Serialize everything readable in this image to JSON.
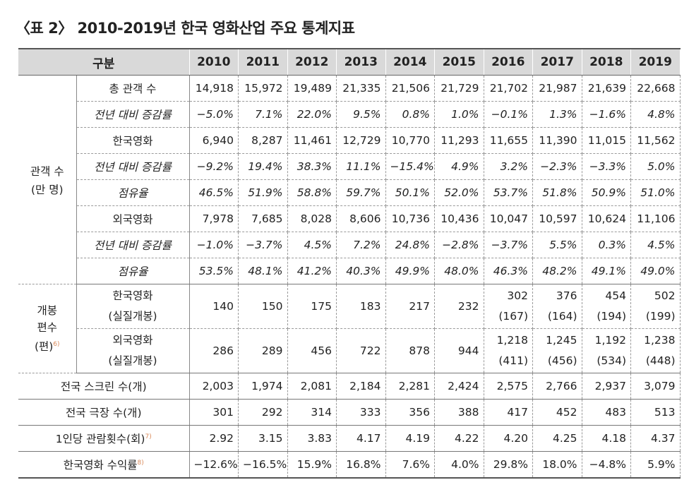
{
  "title": "〈표 2〉 2010-2019년 한국 영화산업 주요 통계지표",
  "header": {
    "category": "구분",
    "years": [
      "2010",
      "2011",
      "2012",
      "2013",
      "2014",
      "2015",
      "2016",
      "2017",
      "2018",
      "2019"
    ]
  },
  "audience": {
    "group_label_1": "관객 수",
    "group_label_2": "(만 명)",
    "rows": [
      {
        "label": "총 관객 수",
        "italic": false,
        "values": [
          "14,918",
          "15,972",
          "19,489",
          "21,335",
          "21,506",
          "21,729",
          "21,702",
          "21,987",
          "21,639",
          "22,668"
        ]
      },
      {
        "label": "전년 대비 증감률",
        "italic": true,
        "values": [
          "−5.0%",
          "7.1%",
          "22.0%",
          "9.5%",
          "0.8%",
          "1.0%",
          "−0.1%",
          "1.3%",
          "−1.6%",
          "4.8%"
        ]
      },
      {
        "label": "한국영화",
        "italic": false,
        "values": [
          "6,940",
          "8,287",
          "11,461",
          "12,729",
          "10,770",
          "11,293",
          "11,655",
          "11,390",
          "11,015",
          "11,562"
        ]
      },
      {
        "label": "전년 대비 증감률",
        "italic": true,
        "values": [
          "−9.2%",
          "19.4%",
          "38.3%",
          "11.1%",
          "−15.4%",
          "4.9%",
          "3.2%",
          "−2.3%",
          "−3.3%",
          "5.0%"
        ]
      },
      {
        "label": "점유율",
        "italic": true,
        "values": [
          "46.5%",
          "51.9%",
          "58.8%",
          "59.7%",
          "50.1%",
          "52.0%",
          "53.7%",
          "51.8%",
          "50.9%",
          "51.0%"
        ]
      },
      {
        "label": "외국영화",
        "italic": false,
        "values": [
          "7,978",
          "7,685",
          "8,028",
          "8,606",
          "10,736",
          "10,436",
          "10,047",
          "10,597",
          "10,624",
          "11,106"
        ]
      },
      {
        "label": "전년 대비 증감률",
        "italic": true,
        "values": [
          "−1.0%",
          "−3.7%",
          "4.5%",
          "7.2%",
          "24.8%",
          "−2.8%",
          "−3.7%",
          "5.5%",
          "0.3%",
          "4.5%"
        ]
      },
      {
        "label": "점유율",
        "italic": true,
        "values": [
          "53.5%",
          "48.1%",
          "41.2%",
          "40.3%",
          "49.9%",
          "48.0%",
          "46.3%",
          "48.2%",
          "49.1%",
          "49.0%"
        ]
      }
    ]
  },
  "releases": {
    "group_label_1": "개봉",
    "group_label_2": "편수",
    "group_label_3": "(편)",
    "footnote": "6)",
    "rows": [
      {
        "label_1": "한국영화",
        "label_2": "(실질개봉)",
        "values": [
          [
            "140",
            ""
          ],
          [
            "150",
            ""
          ],
          [
            "175",
            ""
          ],
          [
            "183",
            ""
          ],
          [
            "217",
            ""
          ],
          [
            "232",
            ""
          ],
          [
            "302",
            "(167)"
          ],
          [
            "376",
            "(164)"
          ],
          [
            "454",
            "(194)"
          ],
          [
            "502",
            "(199)"
          ]
        ]
      },
      {
        "label_1": "외국영화",
        "label_2": "(실질개봉)",
        "values": [
          [
            "286",
            ""
          ],
          [
            "289",
            ""
          ],
          [
            "456",
            ""
          ],
          [
            "722",
            ""
          ],
          [
            "878",
            ""
          ],
          [
            "944",
            ""
          ],
          [
            "1,218",
            "(411)"
          ],
          [
            "1,245",
            "(456)"
          ],
          [
            "1,192",
            "(534)"
          ],
          [
            "1,238",
            "(448)"
          ]
        ]
      }
    ]
  },
  "bottom_rows": [
    {
      "label": "전국  스크린 수(개)",
      "footnote": "",
      "values": [
        "2,003",
        "1,974",
        "2,081",
        "2,184",
        "2,281",
        "2,424",
        "2,575",
        "2,766",
        "2,937",
        "3,079"
      ]
    },
    {
      "label": "전국 극장 수(개)",
      "footnote": "",
      "values": [
        "301",
        "292",
        "314",
        "333",
        "356",
        "388",
        "417",
        "452",
        "483",
        "513"
      ]
    },
    {
      "label": "1인당 관람횟수(회)",
      "footnote": "7)",
      "values": [
        "2.92",
        "3.15",
        "3.83",
        "4.17",
        "4.19",
        "4.22",
        "4.20",
        "4.25",
        "4.18",
        "4.37"
      ]
    },
    {
      "label": "한국영화 수익률",
      "footnote": "8)",
      "values": [
        "−12.6%",
        "−16.5%",
        "15.9%",
        "16.8%",
        "7.6%",
        "4.0%",
        "29.8%",
        "18.0%",
        "−4.8%",
        "5.9%"
      ]
    }
  ]
}
